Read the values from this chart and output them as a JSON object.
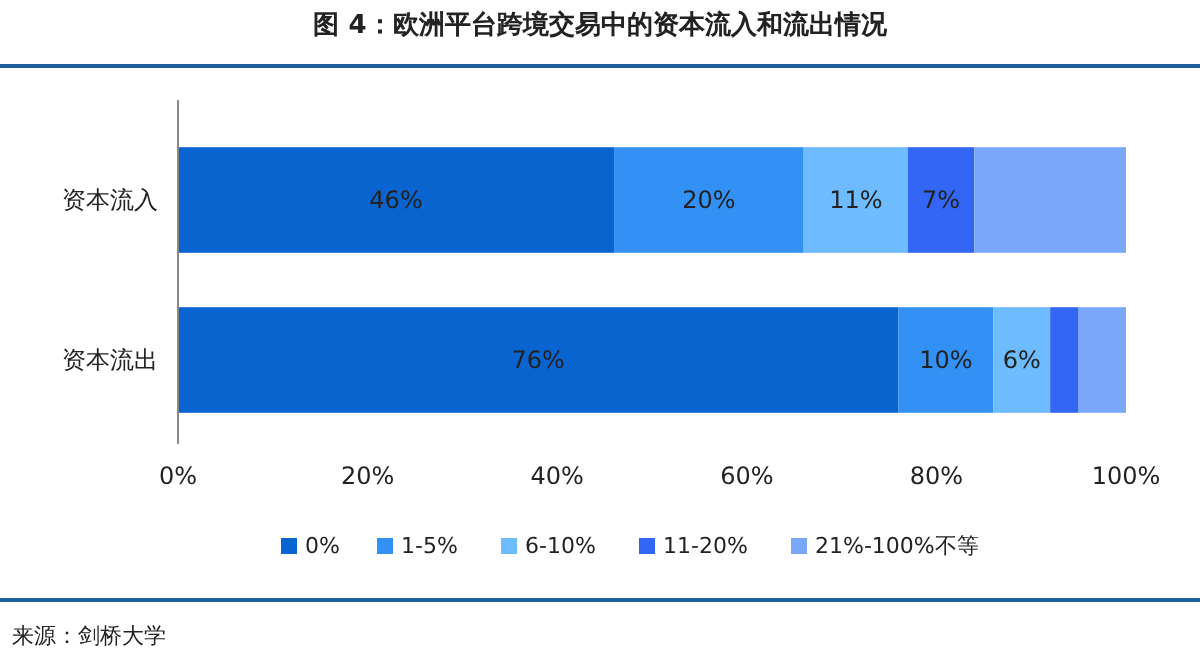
{
  "chart_data": {
    "type": "bar",
    "orientation": "horizontal",
    "stacked": true,
    "title": "图 4：欧洲平台跨境交易中的资本流入和流出情况",
    "categories": [
      "资本流入",
      "资本流出"
    ],
    "series": [
      {
        "name": "0%",
        "color": "#0a64d0",
        "values": [
          46,
          76
        ],
        "value_labels": [
          "46%",
          "76%"
        ]
      },
      {
        "name": "1-5%",
        "color": "#3390f5",
        "values": [
          20,
          10
        ],
        "value_labels": [
          "20%",
          "10%"
        ]
      },
      {
        "name": "6-10%",
        "color": "#6ebcff",
        "values": [
          11,
          6
        ],
        "value_labels": [
          "11%",
          "6%"
        ]
      },
      {
        "name": "11-20%",
        "color": "#3366f5",
        "values": [
          7,
          3
        ],
        "value_labels": [
          "7%",
          null
        ]
      },
      {
        "name": "21%-100%不等",
        "color": "#7aa7fa",
        "values": [
          16,
          5
        ],
        "value_labels": [
          null,
          null
        ]
      }
    ],
    "xlim": [
      0,
      100
    ],
    "xticks": [
      {
        "value": 0,
        "label": "0%"
      },
      {
        "value": 20,
        "label": "20%"
      },
      {
        "value": 40,
        "label": "40%"
      },
      {
        "value": 60,
        "label": "60%"
      },
      {
        "value": 80,
        "label": "80%"
      },
      {
        "value": 100,
        "label": "100%"
      }
    ],
    "grid": false,
    "legend": "bottom",
    "annotations": [
      "来源：剑桥大学"
    ]
  }
}
